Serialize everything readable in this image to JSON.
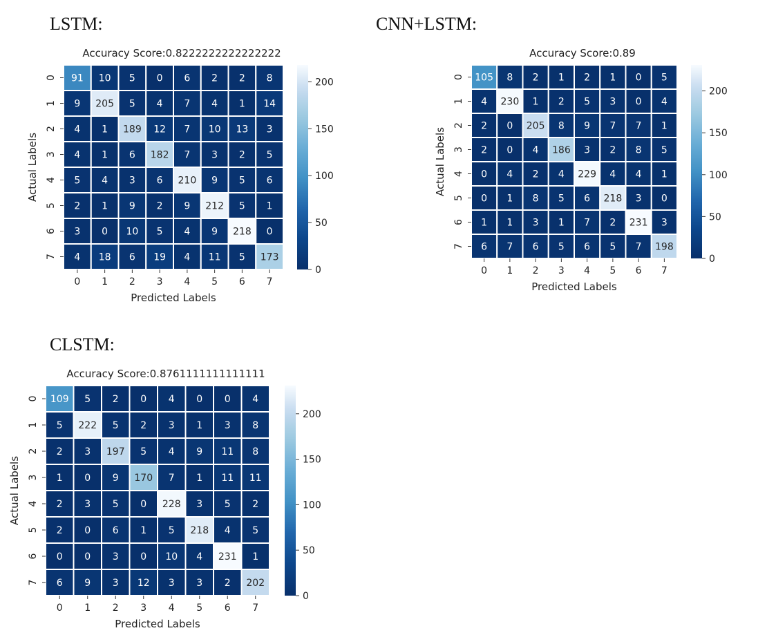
{
  "headings": {
    "lstm": "LSTM:",
    "cnn_lstm": "CNN+LSTM:",
    "clstm": "CLSTM:"
  },
  "colormap": "Blues_r",
  "chart_data": [
    {
      "type": "heatmap",
      "title": "Accuracy Score:0.8222222222222222",
      "xlabel": "Predicted Labels",
      "ylabel": "Actual Labels",
      "x_categories": [
        "0",
        "1",
        "2",
        "3",
        "4",
        "5",
        "6",
        "7"
      ],
      "y_categories": [
        "0",
        "1",
        "2",
        "3",
        "4",
        "5",
        "6",
        "7"
      ],
      "values": [
        [
          91,
          10,
          5,
          0,
          6,
          2,
          2,
          8
        ],
        [
          9,
          205,
          5,
          4,
          7,
          4,
          1,
          14
        ],
        [
          4,
          1,
          189,
          12,
          7,
          10,
          13,
          3
        ],
        [
          4,
          1,
          6,
          182,
          7,
          3,
          2,
          5
        ],
        [
          5,
          4,
          3,
          6,
          210,
          9,
          5,
          6
        ],
        [
          2,
          1,
          9,
          2,
          9,
          212,
          5,
          1
        ],
        [
          3,
          0,
          10,
          5,
          4,
          9,
          218,
          0
        ],
        [
          4,
          18,
          6,
          19,
          4,
          11,
          5,
          173
        ]
      ],
      "colorbar": {
        "min": 0,
        "max": 218,
        "ticks": [
          0,
          50,
          100,
          150,
          200
        ]
      }
    },
    {
      "type": "heatmap",
      "title": "Accuracy Score:0.89",
      "xlabel": "Predicted Labels",
      "ylabel": "Actual Labels",
      "x_categories": [
        "0",
        "1",
        "2",
        "3",
        "4",
        "5",
        "6",
        "7"
      ],
      "y_categories": [
        "0",
        "1",
        "2",
        "3",
        "4",
        "5",
        "6",
        "7"
      ],
      "values": [
        [
          105,
          8,
          2,
          1,
          2,
          1,
          0,
          5
        ],
        [
          4,
          230,
          1,
          2,
          5,
          3,
          0,
          4
        ],
        [
          2,
          0,
          205,
          8,
          9,
          7,
          7,
          1
        ],
        [
          2,
          0,
          4,
          186,
          3,
          2,
          8,
          5
        ],
        [
          0,
          4,
          2,
          4,
          229,
          4,
          4,
          1
        ],
        [
          0,
          1,
          8,
          5,
          6,
          218,
          3,
          0
        ],
        [
          1,
          1,
          3,
          1,
          7,
          2,
          231,
          3
        ],
        [
          6,
          7,
          6,
          5,
          6,
          5,
          7,
          198
        ]
      ],
      "colorbar": {
        "min": 0,
        "max": 231,
        "ticks": [
          0,
          50,
          100,
          150,
          200
        ]
      }
    },
    {
      "type": "heatmap",
      "title": "Accuracy Score:0.8761111111111111",
      "xlabel": "Predicted Labels",
      "ylabel": "Actual Labels",
      "x_categories": [
        "0",
        "1",
        "2",
        "3",
        "4",
        "5",
        "6",
        "7"
      ],
      "y_categories": [
        "0",
        "1",
        "2",
        "3",
        "4",
        "5",
        "6",
        "7"
      ],
      "values": [
        [
          109,
          5,
          2,
          0,
          4,
          0,
          0,
          4
        ],
        [
          5,
          222,
          5,
          2,
          3,
          1,
          3,
          8
        ],
        [
          2,
          3,
          197,
          5,
          4,
          9,
          11,
          8
        ],
        [
          1,
          0,
          9,
          170,
          7,
          1,
          11,
          11
        ],
        [
          2,
          3,
          5,
          0,
          228,
          3,
          5,
          2
        ],
        [
          2,
          0,
          6,
          1,
          5,
          218,
          4,
          5
        ],
        [
          0,
          0,
          3,
          0,
          10,
          4,
          231,
          1
        ],
        [
          6,
          9,
          3,
          12,
          3,
          3,
          2,
          202
        ]
      ],
      "colorbar": {
        "min": 0,
        "max": 231,
        "ticks": [
          0,
          50,
          100,
          150,
          200
        ]
      }
    }
  ]
}
